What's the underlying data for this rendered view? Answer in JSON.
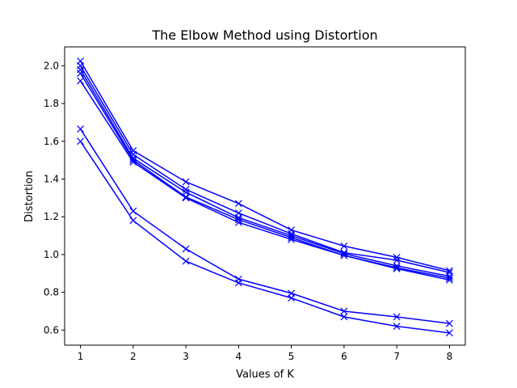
{
  "chart_data": {
    "type": "line",
    "title": "The Elbow Method using Distortion",
    "xlabel": "Values of K",
    "ylabel": "Distortion",
    "x": [
      1,
      2,
      3,
      4,
      5,
      6,
      7,
      8
    ],
    "xlim": [
      0.7,
      8.3
    ],
    "ylim": [
      0.52,
      2.1
    ],
    "xticks": [
      "1",
      "2",
      "3",
      "4",
      "5",
      "6",
      "7",
      "8"
    ],
    "yticks": [
      "0.6",
      "0.8",
      "1.0",
      "1.2",
      "1.4",
      "1.6",
      "1.8",
      "2.0"
    ],
    "grid": false,
    "marker": "x",
    "line_color": "#0000ff",
    "series": [
      {
        "values": [
          2.025,
          1.55,
          1.385,
          1.27,
          1.13,
          1.045,
          0.985,
          0.915
        ]
      },
      {
        "values": [
          2.0,
          1.53,
          1.345,
          1.22,
          1.11,
          1.01,
          0.97,
          0.905
        ]
      },
      {
        "values": [
          1.98,
          1.51,
          1.33,
          1.195,
          1.1,
          1.005,
          0.94,
          0.885
        ]
      },
      {
        "values": [
          1.96,
          1.5,
          1.305,
          1.185,
          1.09,
          0.995,
          0.93,
          0.875
        ]
      },
      {
        "values": [
          1.92,
          1.49,
          1.3,
          1.17,
          1.08,
          0.995,
          0.925,
          0.865
        ]
      },
      {
        "values": [
          1.665,
          1.23,
          1.03,
          0.87,
          0.795,
          0.7,
          0.67,
          0.635
        ]
      },
      {
        "values": [
          1.6,
          1.18,
          0.965,
          0.85,
          0.77,
          0.67,
          0.62,
          0.585
        ]
      }
    ]
  }
}
